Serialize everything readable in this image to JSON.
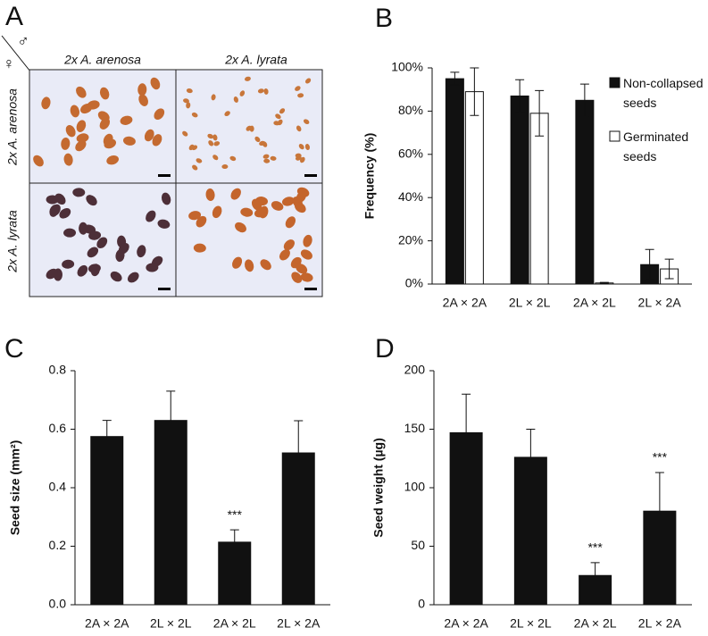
{
  "panel_a": {
    "label": "A",
    "male_symbol": "♂",
    "female_symbol": "♀",
    "columns": [
      "2x A. arenosa",
      "2x A. lyrata"
    ],
    "rows": [
      "2x A. arenosa",
      "2x A. lyrata"
    ]
  },
  "chart_data": [
    {
      "type": "bar",
      "panel": "B",
      "ylabel": "Frequency (%)",
      "categories": [
        "2A × 2A",
        "2L × 2L",
        "2A × 2L",
        "2L × 2A"
      ],
      "series": [
        {
          "name": "Non-collapsed seeds",
          "color": "#111111",
          "values": [
            95,
            87,
            85,
            9
          ],
          "errors": [
            3,
            7.5,
            7.5,
            7
          ]
        },
        {
          "name": "Germinated seeds",
          "color": "#ffffff",
          "values": [
            89,
            79,
            0.5,
            7
          ],
          "errors": [
            11,
            10.5,
            0.3,
            4.5
          ]
        }
      ],
      "error_direction": "both",
      "ylim": [
        0,
        100
      ],
      "yticks": [
        {
          "value": 0,
          "label": "0%"
        },
        {
          "value": 20,
          "label": "20%"
        },
        {
          "value": 40,
          "label": "40%"
        },
        {
          "value": 60,
          "label": "60%"
        },
        {
          "value": 80,
          "label": "80%"
        },
        {
          "value": 100,
          "label": "100%"
        }
      ],
      "legend": "upper right"
    },
    {
      "type": "bar",
      "panel": "C",
      "ylabel": "Seed size (mm²)",
      "categories": [
        "2A × 2A",
        "2L × 2L",
        "2A × 2L",
        "2L × 2A"
      ],
      "series": [
        {
          "color": "#111111",
          "values": [
            0.575,
            0.63,
            0.214,
            0.519
          ],
          "errors": [
            0.055,
            0.1,
            0.042,
            0.11
          ]
        }
      ],
      "error_direction": "up",
      "annotations": [
        null,
        null,
        "***",
        null
      ],
      "ylim": [
        0,
        0.8
      ],
      "yticks": [
        {
          "value": 0,
          "label": "0.0"
        },
        0.2,
        0.4,
        0.6,
        0.8
      ]
    },
    {
      "type": "bar",
      "panel": "D",
      "ylabel": "Seed weight (µg)",
      "categories": [
        "2A × 2A",
        "2L × 2L",
        "2A × 2L",
        "2L × 2A"
      ],
      "series": [
        {
          "color": "#111111",
          "values": [
            147,
            126,
            25,
            80
          ],
          "errors": [
            33,
            24,
            11,
            33
          ]
        }
      ],
      "error_direction": "up",
      "annotations": [
        null,
        null,
        "***",
        "***"
      ],
      "ylim": [
        0,
        200
      ],
      "yticks": [
        0,
        50,
        100,
        150,
        200
      ]
    }
  ]
}
